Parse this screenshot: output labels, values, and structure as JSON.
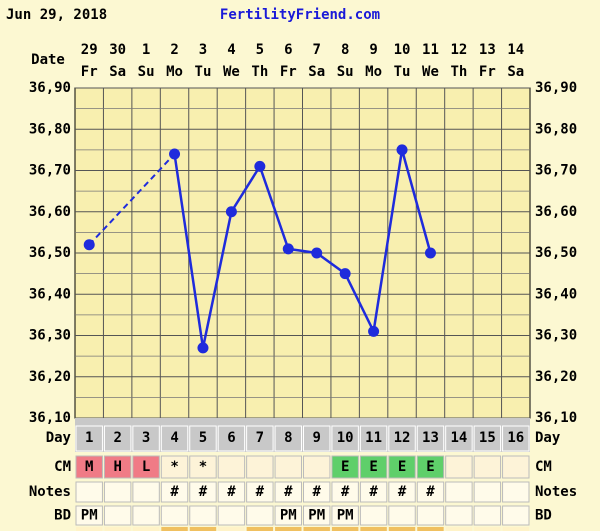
{
  "chart_data": {
    "type": "line",
    "date_label": "Jun 29, 2018",
    "site": "FertilityFriend.com",
    "x_label": "Date",
    "dates": [
      "29",
      "30",
      "1",
      "2",
      "3",
      "4",
      "5",
      "6",
      "7",
      "8",
      "9",
      "10",
      "11",
      "12",
      "13",
      "14"
    ],
    "weekdays": [
      "Fr",
      "Sa",
      "Su",
      "Mo",
      "Tu",
      "We",
      "Th",
      "Fr",
      "Sa",
      "Su",
      "Mo",
      "Tu",
      "We",
      "Th",
      "Fr",
      "Sa"
    ],
    "series": [
      {
        "color": "#1f2bdc",
        "values": [
          36.52,
          null,
          null,
          36.74,
          36.27,
          36.6,
          36.71,
          36.51,
          36.5,
          36.45,
          36.31,
          36.75,
          36.5,
          null,
          null,
          null
        ]
      }
    ],
    "ylim": [
      36.1,
      36.9
    ],
    "yticks": [
      {
        "value": 36.1,
        "label": "36,10"
      },
      {
        "value": 36.2,
        "label": "36,20"
      },
      {
        "value": 36.3,
        "label": "36,30"
      },
      {
        "value": 36.4,
        "label": "36,40"
      },
      {
        "value": 36.5,
        "label": "36,50"
      },
      {
        "value": 36.6,
        "label": "36,60"
      },
      {
        "value": 36.7,
        "label": "36,70"
      },
      {
        "value": 36.8,
        "label": "36,80"
      },
      {
        "value": 36.9,
        "label": "36,90"
      }
    ],
    "grid": true,
    "cm_colors": {
      "M": "#f07b86",
      "H": "#f07b86",
      "L": "#f07b86",
      "E": "#5fcf6a"
    },
    "rows": [
      {
        "label": "Day",
        "values": [
          1,
          2,
          3,
          4,
          5,
          6,
          7,
          8,
          9,
          10,
          11,
          12,
          13,
          14,
          15,
          16
        ]
      },
      {
        "label": "CM",
        "values": [
          "M",
          "H",
          "L",
          "*",
          "*",
          null,
          null,
          null,
          null,
          "E",
          "E",
          "E",
          "E",
          null,
          null,
          null
        ]
      },
      {
        "label": "Notes",
        "values": [
          null,
          null,
          null,
          "#",
          "#",
          "#",
          "#",
          "#",
          "#",
          "#",
          "#",
          "#",
          "#",
          null,
          null,
          null
        ]
      },
      {
        "label": "BD",
        "values": [
          "PM",
          null,
          null,
          null,
          null,
          null,
          null,
          "PM",
          "PM",
          "PM",
          null,
          null,
          null,
          null,
          null,
          null
        ]
      }
    ]
  }
}
